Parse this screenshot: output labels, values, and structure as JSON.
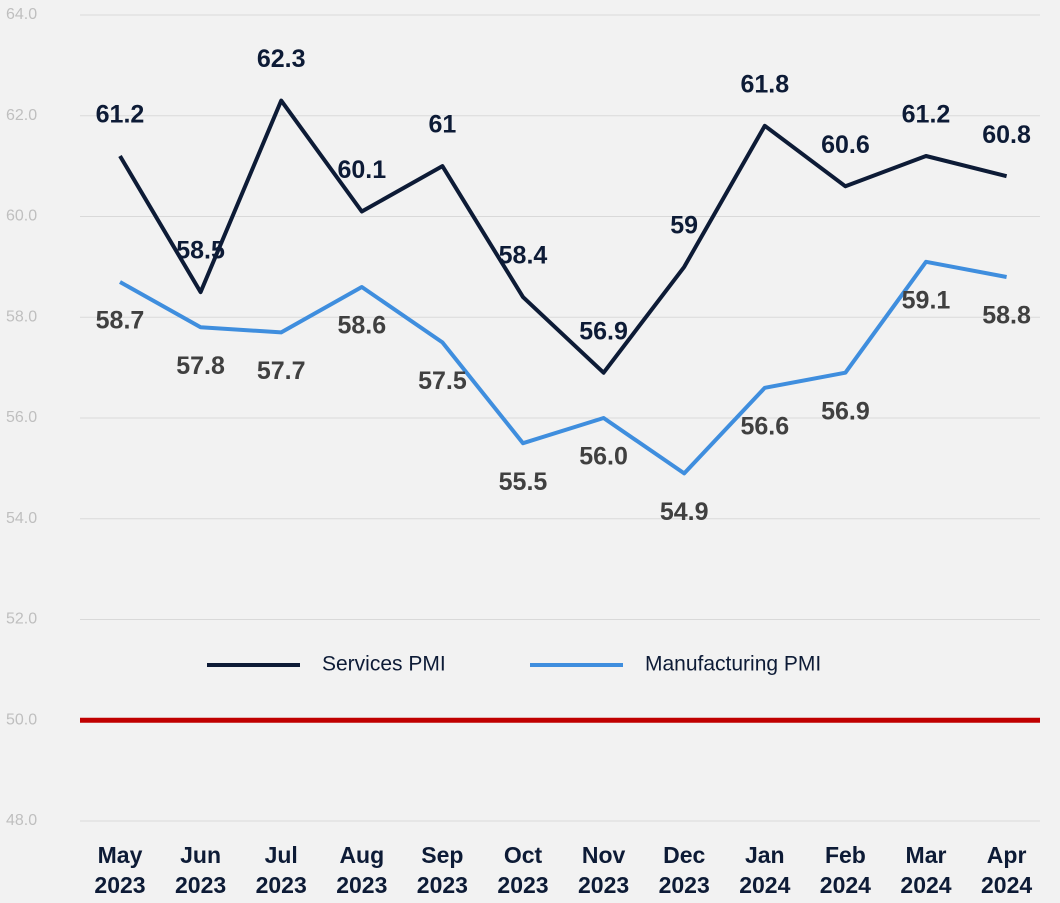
{
  "chart_data": {
    "type": "line",
    "categories": [
      "May 2023",
      "Jun 2023",
      "Jul 2023",
      "Aug 2023",
      "Sep 2023",
      "Oct 2023",
      "Nov 2023",
      "Dec 2023",
      "Jan 2024",
      "Feb 2024",
      "Mar 2024",
      "Apr 2024"
    ],
    "series": [
      {
        "name": "Services PMI",
        "color": "#0d1b36",
        "values": [
          61.2,
          58.5,
          62.3,
          60.1,
          61,
          58.4,
          56.9,
          59,
          61.8,
          60.6,
          61.2,
          60.8
        ]
      },
      {
        "name": "Manufacturing PMI",
        "color": "#3f8ede",
        "values": [
          58.7,
          57.8,
          57.7,
          58.6,
          57.5,
          55.5,
          56.0,
          54.9,
          56.6,
          56.9,
          59.1,
          58.8
        ],
        "value_labels": [
          "58.7",
          "57.8",
          "57.7",
          "58.6",
          "57.5",
          "55.5",
          "56.0",
          "54.9",
          "56.6",
          "56.9",
          "59.1",
          "58.8"
        ]
      }
    ],
    "ylim": [
      48,
      64
    ],
    "yticks": [
      {
        "value": 48,
        "label": "48.0"
      },
      {
        "value": 50,
        "label": "50.0"
      },
      {
        "value": 52,
        "label": "52.0"
      },
      {
        "value": 54,
        "label": "54.0"
      },
      {
        "value": 56,
        "label": "56.0"
      },
      {
        "value": 58,
        "label": "58.0"
      },
      {
        "value": 60,
        "label": "60.0"
      },
      {
        "value": 62,
        "label": "62.0"
      },
      {
        "value": 64,
        "label": "64.0"
      }
    ],
    "grid": true,
    "reference_line": {
      "value": 50,
      "color": "#c00000"
    },
    "legend": "bottom"
  }
}
